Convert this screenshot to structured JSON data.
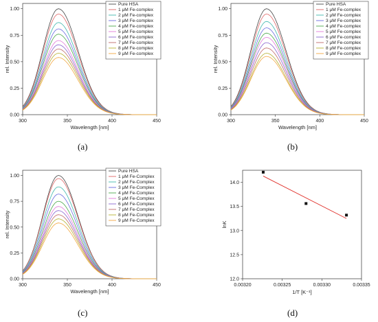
{
  "panel_labels": [
    "(a)",
    "(b)",
    "(c)",
    "(d)"
  ],
  "colors": [
    "#444444",
    "#e06666",
    "#3fb8ad",
    "#6b6be0",
    "#4aa84a",
    "#e27ad9",
    "#8a66d0",
    "#c06a6a",
    "#b5b030",
    "#f2a640"
  ],
  "chart_data": [
    {
      "type": "line",
      "xlabel": "Wavelength [nm]",
      "ylabel": "rel. Intensity",
      "xlim": [
        300,
        450
      ],
      "ylim": [
        0,
        1.05
      ],
      "xticks": [
        300,
        350,
        400,
        450
      ],
      "yticks": [
        0.0,
        0.25,
        0.5,
        0.75,
        1.0
      ],
      "legend_position": "top-right",
      "series": [
        {
          "name": "Pure HSA",
          "peak": 1.0
        },
        {
          "name": "1 μM Fe-complex",
          "peak": 0.95
        },
        {
          "name": "2 μM Fe-complex",
          "peak": 0.87
        },
        {
          "name": "3 μM Fe-complex",
          "peak": 0.81
        },
        {
          "name": "4 μM Fe-complex",
          "peak": 0.76
        },
        {
          "name": "5 μM Fe-complex",
          "peak": 0.7
        },
        {
          "name": "6 μM Fe-complex",
          "peak": 0.66
        },
        {
          "name": "7 μM Fe-complex",
          "peak": 0.62
        },
        {
          "name": "8 μM Fe-complex",
          "peak": 0.58
        },
        {
          "name": "9 μM Fe-complex",
          "peak": 0.54
        }
      ]
    },
    {
      "type": "line",
      "xlabel": "Wavelength [nm]",
      "ylabel": "rel. Intensity",
      "xlim": [
        300,
        450
      ],
      "ylim": [
        0,
        1.05
      ],
      "xticks": [
        300,
        350,
        400,
        450
      ],
      "yticks": [
        0.0,
        0.25,
        0.5,
        0.75,
        1.0
      ],
      "legend_position": "top-right",
      "series": [
        {
          "name": "Pure HSA",
          "peak": 1.0
        },
        {
          "name": "1 μM Fe-complex",
          "peak": 0.95
        },
        {
          "name": "2 μM Fe-complex",
          "peak": 0.88
        },
        {
          "name": "3 μM Fe-complex",
          "peak": 0.82
        },
        {
          "name": "4 μM Fe-complex",
          "peak": 0.77
        },
        {
          "name": "5 μM Fe-complex",
          "peak": 0.73
        },
        {
          "name": "6 μM Fe-complex",
          "peak": 0.68
        },
        {
          "name": "7 μM Fe-complex",
          "peak": 0.63
        },
        {
          "name": "8 μM Fe-complex",
          "peak": 0.58
        },
        {
          "name": "9 μM Fe-complex",
          "peak": 0.55
        }
      ]
    },
    {
      "type": "line",
      "xlabel": "Wavelength [nm]",
      "ylabel": "rel. Intensity",
      "xlim": [
        300,
        450
      ],
      "ylim": [
        0,
        1.05
      ],
      "xticks": [
        300,
        350,
        400,
        450
      ],
      "yticks": [
        0.0,
        0.25,
        0.5,
        0.75,
        1.0
      ],
      "legend_position": "top-right",
      "series": [
        {
          "name": "Pure HSA",
          "peak": 1.0
        },
        {
          "name": "1 μM Fe-Complex",
          "peak": 0.97
        },
        {
          "name": "2 μM Fe-Complex",
          "peak": 0.89
        },
        {
          "name": "3 μM Fe-Complex",
          "peak": 0.82
        },
        {
          "name": "4 μM Fe-Complex",
          "peak": 0.75
        },
        {
          "name": "5 μM Fe-Complex",
          "peak": 0.7
        },
        {
          "name": "6 μM Fe-Complex",
          "peak": 0.66
        },
        {
          "name": "7 μM Fe-Complex",
          "peak": 0.62
        },
        {
          "name": "8 μM Fe-Complex",
          "peak": 0.58
        },
        {
          "name": "9 μM Fe-Complex",
          "peak": 0.54
        }
      ]
    },
    {
      "type": "scatter",
      "xlabel": "1/T [K⁻¹]",
      "ylabel": "lnK",
      "xlim": [
        0.0032,
        0.00335
      ],
      "ylim": [
        12.0,
        14.25
      ],
      "xticks": [
        0.0032,
        0.00325,
        0.0033,
        0.00335
      ],
      "xtick_labels": [
        "0.00320",
        "0.00325",
        "0.00330",
        "0.00335"
      ],
      "yticks": [
        12.0,
        12.5,
        13.0,
        13.5,
        14.0
      ],
      "ytick_labels": [
        "12.0",
        "12.5",
        "13.0",
        "13.5",
        "14.0"
      ],
      "points": [
        {
          "x": 0.003226,
          "y": 14.21
        },
        {
          "x": 0.00328,
          "y": 13.56
        },
        {
          "x": 0.003331,
          "y": 13.32
        }
      ],
      "fit_line": {
        "x": [
          0.003226,
          0.003331
        ],
        "y": [
          14.13,
          13.25
        ]
      },
      "point_color": "#111111",
      "line_color": "#e0302a"
    }
  ]
}
